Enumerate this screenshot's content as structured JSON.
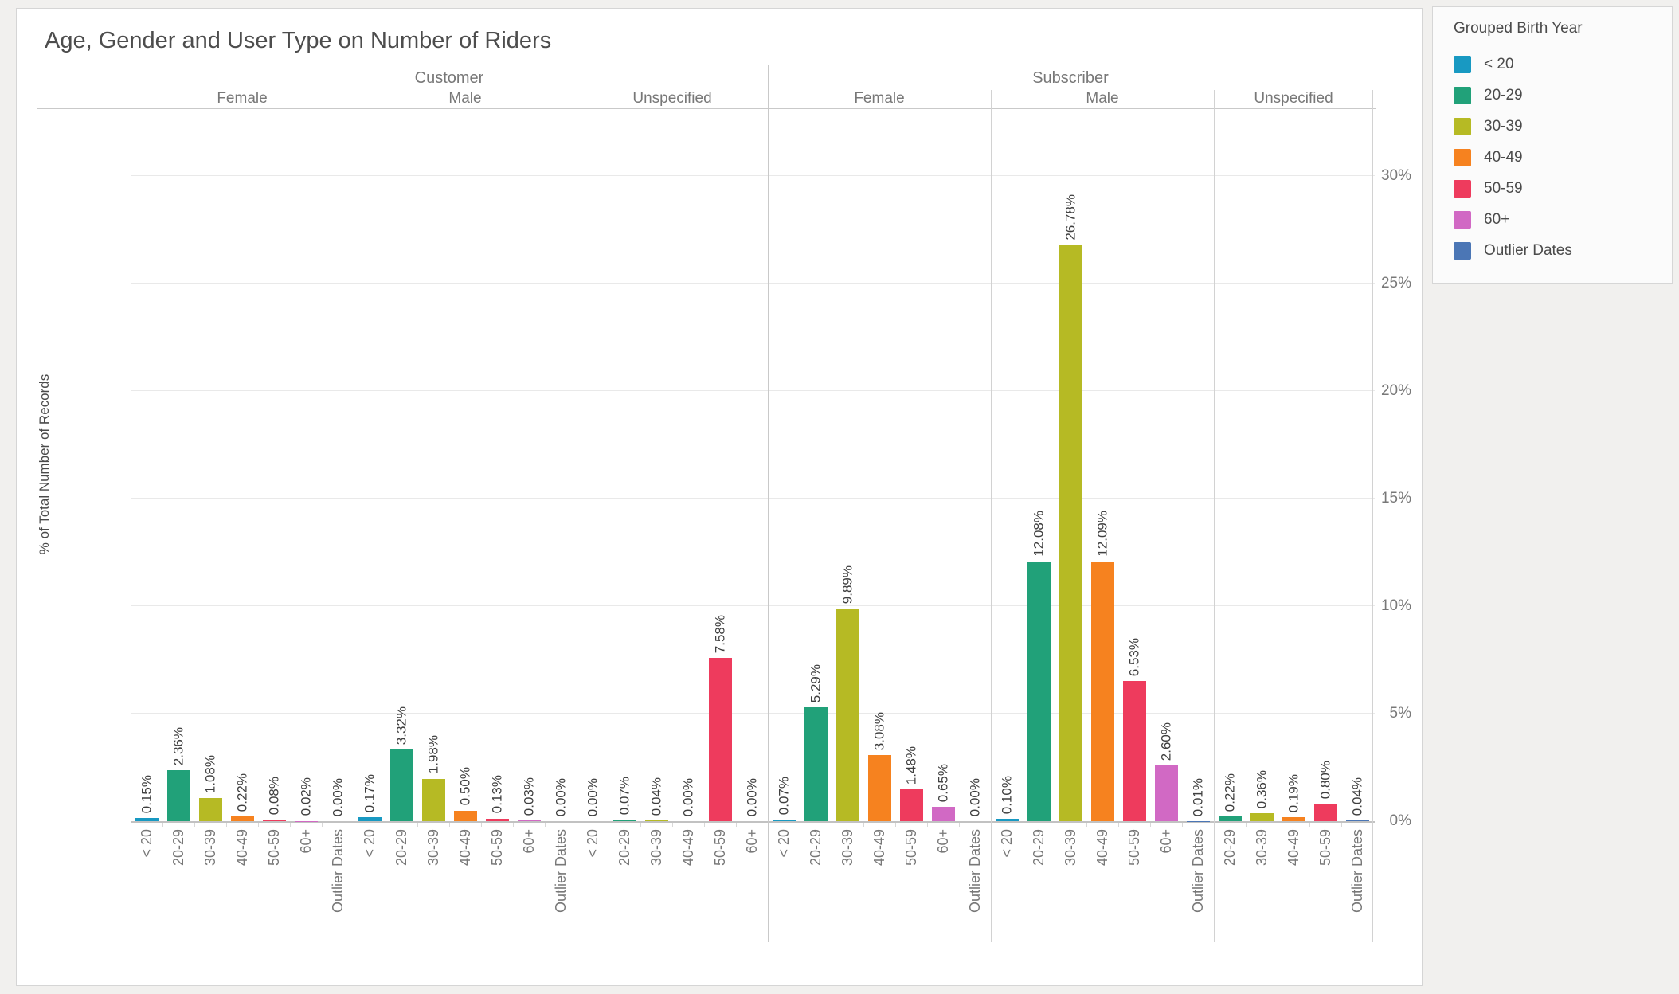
{
  "title": "Age, Gender and User Type on Number of Riders",
  "y_axis": {
    "title": "% of Total Number of Records",
    "tick_labels": [
      "0%",
      "5%",
      "10%",
      "15%",
      "20%",
      "25%",
      "30%"
    ]
  },
  "legend": {
    "title": "Grouped Birth Year",
    "items": [
      {
        "label": "< 20",
        "color": "#1899c2"
      },
      {
        "label": "20-29",
        "color": "#21a179"
      },
      {
        "label": "30-39",
        "color": "#b6ba24"
      },
      {
        "label": "40-49",
        "color": "#f6821f"
      },
      {
        "label": "50-59",
        "color": "#ee3b5d"
      },
      {
        "label": "60+",
        "color": "#d169c4"
      },
      {
        "label": "Outlier Dates",
        "color": "#4b76b5"
      }
    ]
  },
  "chart_data": {
    "type": "bar",
    "title": "Age, Gender and User Type on Number of Riders",
    "xlabel": "",
    "ylabel": "% of Total Number of Records",
    "ylim": [
      0,
      33.1
    ],
    "grid": true,
    "legend_position": "right",
    "value_label_format": "0.00%",
    "column_hierarchy": [
      "User Type",
      "Gender",
      "Grouped Birth Year"
    ],
    "groups": [
      {
        "user_type": "Customer",
        "panels": [
          {
            "gender": "Female",
            "categories": [
              "< 20",
              "20-29",
              "30-39",
              "40-49",
              "50-59",
              "60+",
              "Outlier Dates"
            ],
            "values": [
              0.15,
              2.36,
              1.08,
              0.22,
              0.08,
              0.02,
              0.0
            ]
          },
          {
            "gender": "Male",
            "categories": [
              "< 20",
              "20-29",
              "30-39",
              "40-49",
              "50-59",
              "60+",
              "Outlier Dates"
            ],
            "values": [
              0.17,
              3.32,
              1.98,
              0.5,
              0.13,
              0.03,
              0.0
            ]
          },
          {
            "gender": "Unspecified",
            "categories": [
              "< 20",
              "20-29",
              "30-39",
              "40-49",
              "50-59",
              "60+"
            ],
            "values": [
              0.0,
              0.07,
              0.04,
              0.0,
              7.58,
              0.0
            ]
          }
        ]
      },
      {
        "user_type": "Subscriber",
        "panels": [
          {
            "gender": "Female",
            "categories": [
              "< 20",
              "20-29",
              "30-39",
              "40-49",
              "50-59",
              "60+",
              "Outlier Dates"
            ],
            "values": [
              0.07,
              5.29,
              9.89,
              3.08,
              1.48,
              0.65,
              0.0
            ]
          },
          {
            "gender": "Male",
            "categories": [
              "< 20",
              "20-29",
              "30-39",
              "40-49",
              "50-59",
              "60+",
              "Outlier Dates"
            ],
            "values": [
              0.1,
              12.08,
              26.78,
              12.09,
              6.53,
              2.6,
              0.01
            ]
          },
          {
            "gender": "Unspecified",
            "categories": [
              "20-29",
              "30-39",
              "40-49",
              "50-59",
              "Outlier Dates"
            ],
            "values": [
              0.22,
              0.36,
              0.19,
              0.8,
              0.04
            ]
          }
        ]
      }
    ]
  }
}
